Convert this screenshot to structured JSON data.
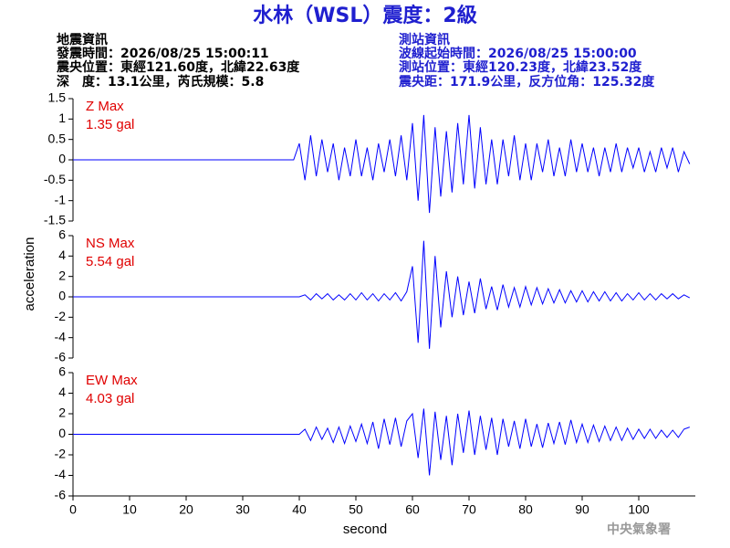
{
  "header": {
    "title": "水林（WSL）震度：2級",
    "left": [
      "地震資訊",
      "發震時間：2026/08/25 15:00:11",
      "震央位置：東經121.60度，北緯22.63度",
      "深　度：13.1公里，芮氏規模：5.8"
    ],
    "right": [
      "測站資訊",
      "波線起始時間：2026/08/25 15:00:00",
      "測站位置：東經120.23度，北緯23.52度",
      "震央距：171.9公里，反方位角：125.32度"
    ],
    "footer": "中央氣象署"
  },
  "y_label": "acceleration",
  "x_label": "second",
  "chart_data": [
    {
      "type": "line",
      "label": "Z Max",
      "max_label": "1.35 gal",
      "color": "#0000ff",
      "xlim": [
        0,
        110
      ],
      "ylim": [
        -1.5,
        1.5
      ],
      "yticks": [
        -1.5,
        -1,
        -0.5,
        0,
        0.5,
        1,
        1.5
      ],
      "x": [
        0,
        1,
        2,
        3,
        4,
        5,
        6,
        7,
        8,
        9,
        10,
        11,
        12,
        13,
        14,
        15,
        16,
        17,
        18,
        19,
        20,
        21,
        22,
        23,
        24,
        25,
        26,
        27,
        28,
        29,
        30,
        31,
        32,
        33,
        34,
        35,
        36,
        37,
        38,
        39,
        40,
        41,
        42,
        43,
        44,
        45,
        46,
        47,
        48,
        49,
        50,
        51,
        52,
        53,
        54,
        55,
        56,
        57,
        58,
        59,
        60,
        61,
        62,
        63,
        64,
        65,
        66,
        67,
        68,
        69,
        70,
        71,
        72,
        73,
        74,
        75,
        76,
        77,
        78,
        79,
        80,
        81,
        82,
        83,
        84,
        85,
        86,
        87,
        88,
        89,
        90,
        91,
        92,
        93,
        94,
        95,
        96,
        97,
        98,
        99,
        100,
        101,
        102,
        103,
        104,
        105,
        106,
        107,
        108,
        109
      ],
      "values": [
        0,
        0,
        0,
        0,
        0,
        0,
        0,
        0,
        0,
        0,
        0,
        0,
        0,
        0,
        0,
        0,
        0,
        0,
        0,
        0,
        0,
        0,
        0,
        0,
        0,
        0,
        0,
        0,
        0,
        0,
        0,
        0,
        0,
        0,
        0,
        0,
        0,
        0,
        0,
        0,
        0.4,
        -0.5,
        0.6,
        -0.4,
        0.5,
        -0.3,
        0.4,
        -0.5,
        0.3,
        -0.4,
        0.5,
        -0.4,
        0.3,
        -0.5,
        0.4,
        -0.3,
        0.5,
        -0.4,
        0.6,
        -0.5,
        0.9,
        -1.0,
        1.1,
        -1.3,
        0.8,
        -0.9,
        0.7,
        -0.8,
        0.9,
        -0.6,
        1.1,
        -0.7,
        0.8,
        -0.6,
        0.5,
        -0.6,
        0.5,
        -0.4,
        0.6,
        -0.5,
        0.4,
        -0.5,
        0.4,
        -0.3,
        0.5,
        -0.4,
        0.3,
        -0.4,
        0.5,
        -0.3,
        0.4,
        -0.3,
        0.3,
        -0.4,
        0.3,
        -0.3,
        0.4,
        -0.3,
        0.3,
        -0.2,
        0.3,
        -0.3,
        0.2,
        -0.3,
        0.3,
        -0.2,
        0.3,
        -0.3,
        0.2,
        -0.1
      ]
    },
    {
      "type": "line",
      "label": "NS Max",
      "max_label": "5.54 gal",
      "color": "#0000ff",
      "xlim": [
        0,
        110
      ],
      "ylim": [
        -6,
        6
      ],
      "yticks": [
        -6,
        -4,
        -2,
        0,
        2,
        4,
        6
      ],
      "x": [
        0,
        1,
        2,
        3,
        4,
        5,
        6,
        7,
        8,
        9,
        10,
        11,
        12,
        13,
        14,
        15,
        16,
        17,
        18,
        19,
        20,
        21,
        22,
        23,
        24,
        25,
        26,
        27,
        28,
        29,
        30,
        31,
        32,
        33,
        34,
        35,
        36,
        37,
        38,
        39,
        40,
        41,
        42,
        43,
        44,
        45,
        46,
        47,
        48,
        49,
        50,
        51,
        52,
        53,
        54,
        55,
        56,
        57,
        58,
        59,
        60,
        61,
        62,
        63,
        64,
        65,
        66,
        67,
        68,
        69,
        70,
        71,
        72,
        73,
        74,
        75,
        76,
        77,
        78,
        79,
        80,
        81,
        82,
        83,
        84,
        85,
        86,
        87,
        88,
        89,
        90,
        91,
        92,
        93,
        94,
        95,
        96,
        97,
        98,
        99,
        100,
        101,
        102,
        103,
        104,
        105,
        106,
        107,
        108,
        109
      ],
      "values": [
        0,
        0,
        0,
        0,
        0,
        0,
        0,
        0,
        0,
        0,
        0,
        0,
        0,
        0,
        0,
        0,
        0,
        0,
        0,
        0,
        0,
        0,
        0,
        0,
        0,
        0,
        0,
        0,
        0,
        0,
        0,
        0,
        0,
        0,
        0,
        0,
        0,
        0,
        0,
        0,
        0,
        0.2,
        -0.3,
        0.3,
        -0.2,
        0.3,
        -0.3,
        0.2,
        -0.3,
        0.3,
        -0.3,
        0.4,
        -0.3,
        0.3,
        -0.4,
        0.3,
        -0.3,
        0.4,
        -0.4,
        0.5,
        3.0,
        -4.5,
        5.5,
        -5.1,
        4.0,
        -3.0,
        2.5,
        -2.0,
        2.0,
        -1.8,
        1.5,
        -1.6,
        1.8,
        -1.2,
        1.0,
        -1.3,
        1.2,
        -1.0,
        0.9,
        -1.0,
        1.0,
        -0.8,
        0.9,
        -0.7,
        0.8,
        -0.6,
        0.7,
        -0.6,
        0.6,
        -0.5,
        0.6,
        -0.5,
        0.5,
        -0.4,
        0.5,
        -0.4,
        0.4,
        -0.4,
        0.3,
        -0.3,
        0.4,
        -0.3,
        0.3,
        -0.3,
        0.3,
        -0.2,
        0.3,
        -0.2,
        0.2,
        -0.1
      ]
    },
    {
      "type": "line",
      "label": "EW Max",
      "max_label": "4.03 gal",
      "color": "#0000ff",
      "xlim": [
        0,
        110
      ],
      "ylim": [
        -6,
        6
      ],
      "yticks": [
        -6,
        -4,
        -2,
        0,
        2,
        4,
        6
      ],
      "xticks": [
        0,
        10,
        20,
        30,
        40,
        50,
        60,
        70,
        80,
        90,
        100
      ],
      "x": [
        0,
        1,
        2,
        3,
        4,
        5,
        6,
        7,
        8,
        9,
        10,
        11,
        12,
        13,
        14,
        15,
        16,
        17,
        18,
        19,
        20,
        21,
        22,
        23,
        24,
        25,
        26,
        27,
        28,
        29,
        30,
        31,
        32,
        33,
        34,
        35,
        36,
        37,
        38,
        39,
        40,
        41,
        42,
        43,
        44,
        45,
        46,
        47,
        48,
        49,
        50,
        51,
        52,
        53,
        54,
        55,
        56,
        57,
        58,
        59,
        60,
        61,
        62,
        63,
        64,
        65,
        66,
        67,
        68,
        69,
        70,
        71,
        72,
        73,
        74,
        75,
        76,
        77,
        78,
        79,
        80,
        81,
        82,
        83,
        84,
        85,
        86,
        87,
        88,
        89,
        90,
        91,
        92,
        93,
        94,
        95,
        96,
        97,
        98,
        99,
        100,
        101,
        102,
        103,
        104,
        105,
        106,
        107,
        108,
        109
      ],
      "values": [
        0,
        0,
        0,
        0,
        0,
        0,
        0,
        0,
        0,
        0,
        0,
        0,
        0,
        0,
        0,
        0,
        0,
        0,
        0,
        0,
        0,
        0,
        0,
        0,
        0,
        0,
        0,
        0,
        0,
        0,
        0,
        0,
        0,
        0,
        0,
        0,
        0,
        0,
        0,
        0,
        0,
        0.5,
        -0.6,
        0.7,
        -0.5,
        0.6,
        -0.8,
        0.7,
        -0.9,
        0.8,
        -0.7,
        1.0,
        -0.9,
        1.2,
        -1.4,
        1.5,
        -1.0,
        1.6,
        -1.2,
        1.3,
        2.0,
        -2.3,
        2.5,
        -4.0,
        2.2,
        -2.5,
        1.8,
        -3.0,
        2.0,
        -1.8,
        2.3,
        -2.0,
        1.8,
        -1.5,
        1.6,
        -2.0,
        1.5,
        -1.2,
        1.3,
        -1.4,
        1.5,
        -1.2,
        1.0,
        -1.3,
        1.1,
        -0.9,
        1.2,
        -1.0,
        1.4,
        -0.8,
        1.0,
        -0.8,
        0.9,
        -0.7,
        0.8,
        -0.6,
        0.7,
        -0.6,
        0.6,
        -0.5,
        0.5,
        -0.4,
        0.5,
        -0.4,
        0.4,
        -0.3,
        0.4,
        -0.3,
        0.5,
        0.7
      ]
    }
  ]
}
